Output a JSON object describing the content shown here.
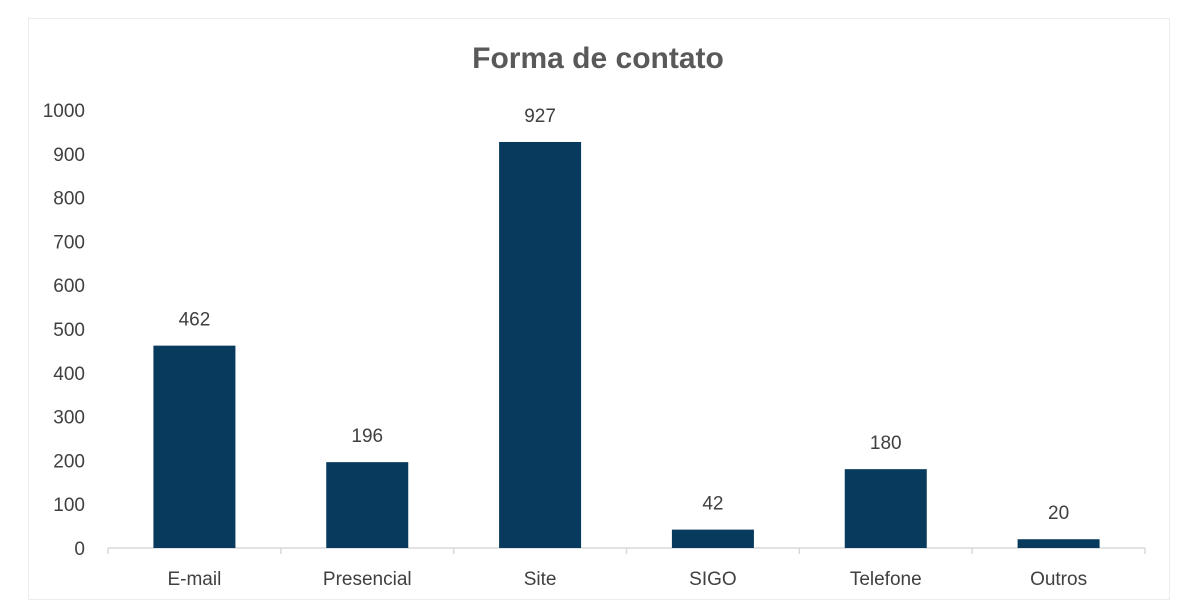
{
  "chart_data": {
    "type": "bar",
    "title": "Forma de contato",
    "xlabel": "",
    "ylabel": "",
    "categories": [
      "E-mail",
      "Presencial",
      "Site",
      "SIGO",
      "Telefone",
      "Outros"
    ],
    "values": [
      462,
      196,
      927,
      42,
      180,
      20
    ],
    "data_labels": [
      "462",
      "196",
      "927",
      "42",
      "180",
      "20"
    ],
    "ylim": [
      0,
      1000
    ],
    "yticks": [
      "0",
      "100",
      "200",
      "300",
      "400",
      "500",
      "600",
      "700",
      "800",
      "900",
      "1000"
    ],
    "grid": false,
    "legend": "none",
    "bar_color": "#073a5c"
  }
}
